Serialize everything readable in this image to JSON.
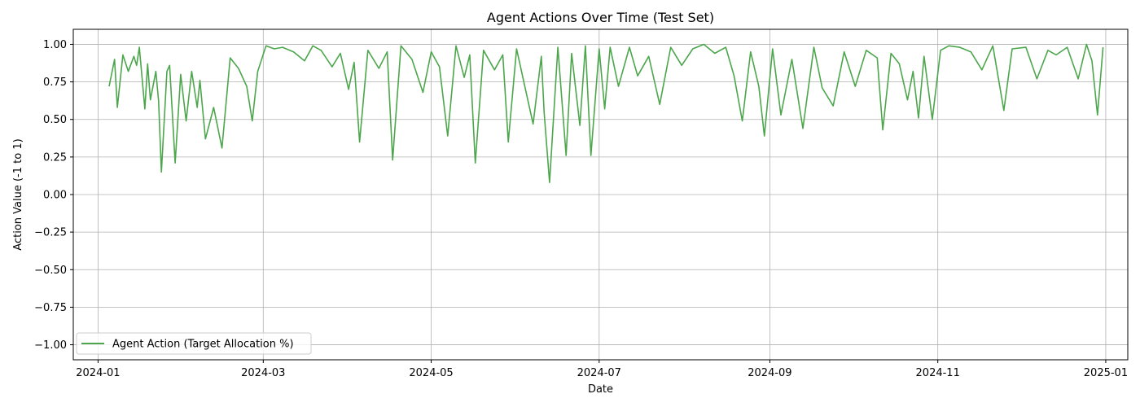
{
  "chart_data": {
    "type": "line",
    "title": "Agent Actions Over Time (Test Set)",
    "xlabel": "Date",
    "ylabel": "Action Value (-1 to 1)",
    "xlim": [
      "2023-12-23",
      "2025-01-09"
    ],
    "ylim": [
      -1.1,
      1.1
    ],
    "x_ticks": [
      "2024-01",
      "2024-03",
      "2024-05",
      "2024-07",
      "2024-09",
      "2024-11",
      "2025-01"
    ],
    "x_tick_dates": [
      "2024-01-01",
      "2024-03-01",
      "2024-05-01",
      "2024-07-01",
      "2024-09-01",
      "2024-11-01",
      "2025-01-01"
    ],
    "y_ticks": [
      1.0,
      0.75,
      0.5,
      0.25,
      0.0,
      -0.25,
      -0.5,
      -0.75,
      -1.0
    ],
    "y_tick_labels": [
      "1.00",
      "0.75",
      "0.50",
      "0.25",
      "0.00",
      "−0.25",
      "−0.50",
      "−0.75",
      "−1.00"
    ],
    "grid": true,
    "legend": {
      "position": "lower-left"
    },
    "series": [
      {
        "name": "Agent Action (Target Allocation %)",
        "color": "#4ca64c",
        "x": [
          "2024-01-05",
          "2024-01-07",
          "2024-01-08",
          "2024-01-10",
          "2024-01-12",
          "2024-01-14",
          "2024-01-15",
          "2024-01-16",
          "2024-01-18",
          "2024-01-19",
          "2024-01-20",
          "2024-01-22",
          "2024-01-23",
          "2024-01-24",
          "2024-01-26",
          "2024-01-27",
          "2024-01-29",
          "2024-01-31",
          "2024-02-02",
          "2024-02-04",
          "2024-02-06",
          "2024-02-07",
          "2024-02-09",
          "2024-02-12",
          "2024-02-15",
          "2024-02-18",
          "2024-02-21",
          "2024-02-24",
          "2024-02-26",
          "2024-02-28",
          "2024-03-02",
          "2024-03-05",
          "2024-03-08",
          "2024-03-12",
          "2024-03-16",
          "2024-03-19",
          "2024-03-22",
          "2024-03-26",
          "2024-03-29",
          "2024-04-01",
          "2024-04-03",
          "2024-04-05",
          "2024-04-08",
          "2024-04-12",
          "2024-04-15",
          "2024-04-17",
          "2024-04-20",
          "2024-04-24",
          "2024-04-28",
          "2024-05-01",
          "2024-05-04",
          "2024-05-07",
          "2024-05-10",
          "2024-05-13",
          "2024-05-15",
          "2024-05-17",
          "2024-05-20",
          "2024-05-24",
          "2024-05-27",
          "2024-05-29",
          "2024-06-01",
          "2024-06-04",
          "2024-06-07",
          "2024-06-10",
          "2024-06-11",
          "2024-06-13",
          "2024-06-16",
          "2024-06-19",
          "2024-06-21",
          "2024-06-24",
          "2024-06-26",
          "2024-06-28",
          "2024-07-01",
          "2024-07-03",
          "2024-07-05",
          "2024-07-08",
          "2024-07-12",
          "2024-07-15",
          "2024-07-19",
          "2024-07-23",
          "2024-07-27",
          "2024-07-31",
          "2024-08-04",
          "2024-08-08",
          "2024-08-12",
          "2024-08-16",
          "2024-08-19",
          "2024-08-22",
          "2024-08-25",
          "2024-08-28",
          "2024-08-30",
          "2024-09-02",
          "2024-09-05",
          "2024-09-09",
          "2024-09-13",
          "2024-09-17",
          "2024-09-20",
          "2024-09-24",
          "2024-09-28",
          "2024-10-02",
          "2024-10-06",
          "2024-10-10",
          "2024-10-12",
          "2024-10-15",
          "2024-10-18",
          "2024-10-21",
          "2024-10-23",
          "2024-10-25",
          "2024-10-27",
          "2024-10-30",
          "2024-11-02",
          "2024-11-05",
          "2024-11-09",
          "2024-11-13",
          "2024-11-17",
          "2024-11-21",
          "2024-11-25",
          "2024-11-28",
          "2024-12-03",
          "2024-12-07",
          "2024-12-11",
          "2024-12-14",
          "2024-12-18",
          "2024-12-22",
          "2024-12-25",
          "2024-12-27",
          "2024-12-29",
          "2024-12-31"
        ],
        "y": [
          0.72,
          0.9,
          0.58,
          0.93,
          0.82,
          0.92,
          0.86,
          0.98,
          0.57,
          0.87,
          0.63,
          0.82,
          0.62,
          0.15,
          0.82,
          0.86,
          0.21,
          0.8,
          0.49,
          0.82,
          0.58,
          0.76,
          0.37,
          0.58,
          0.31,
          0.91,
          0.84,
          0.72,
          0.49,
          0.82,
          0.99,
          0.97,
          0.98,
          0.95,
          0.89,
          0.99,
          0.96,
          0.85,
          0.94,
          0.7,
          0.88,
          0.35,
          0.96,
          0.84,
          0.95,
          0.23,
          0.99,
          0.9,
          0.68,
          0.95,
          0.85,
          0.39,
          0.99,
          0.78,
          0.93,
          0.21,
          0.96,
          0.83,
          0.93,
          0.35,
          0.97,
          0.72,
          0.47,
          0.92,
          0.55,
          0.08,
          0.98,
          0.26,
          0.94,
          0.46,
          0.99,
          0.26,
          0.97,
          0.57,
          0.98,
          0.72,
          0.98,
          0.79,
          0.92,
          0.6,
          0.98,
          0.86,
          0.97,
          1.0,
          0.94,
          0.98,
          0.79,
          0.49,
          0.95,
          0.72,
          0.39,
          0.97,
          0.53,
          0.9,
          0.44,
          0.98,
          0.71,
          0.59,
          0.95,
          0.72,
          0.96,
          0.91,
          0.43,
          0.94,
          0.87,
          0.63,
          0.82,
          0.51,
          0.92,
          0.5,
          0.96,
          0.99,
          0.98,
          0.95,
          0.83,
          0.99,
          0.56,
          0.97,
          0.98,
          0.77,
          0.96,
          0.93,
          0.98,
          0.77,
          1.0,
          0.89,
          0.53,
          0.98
        ]
      }
    ]
  }
}
